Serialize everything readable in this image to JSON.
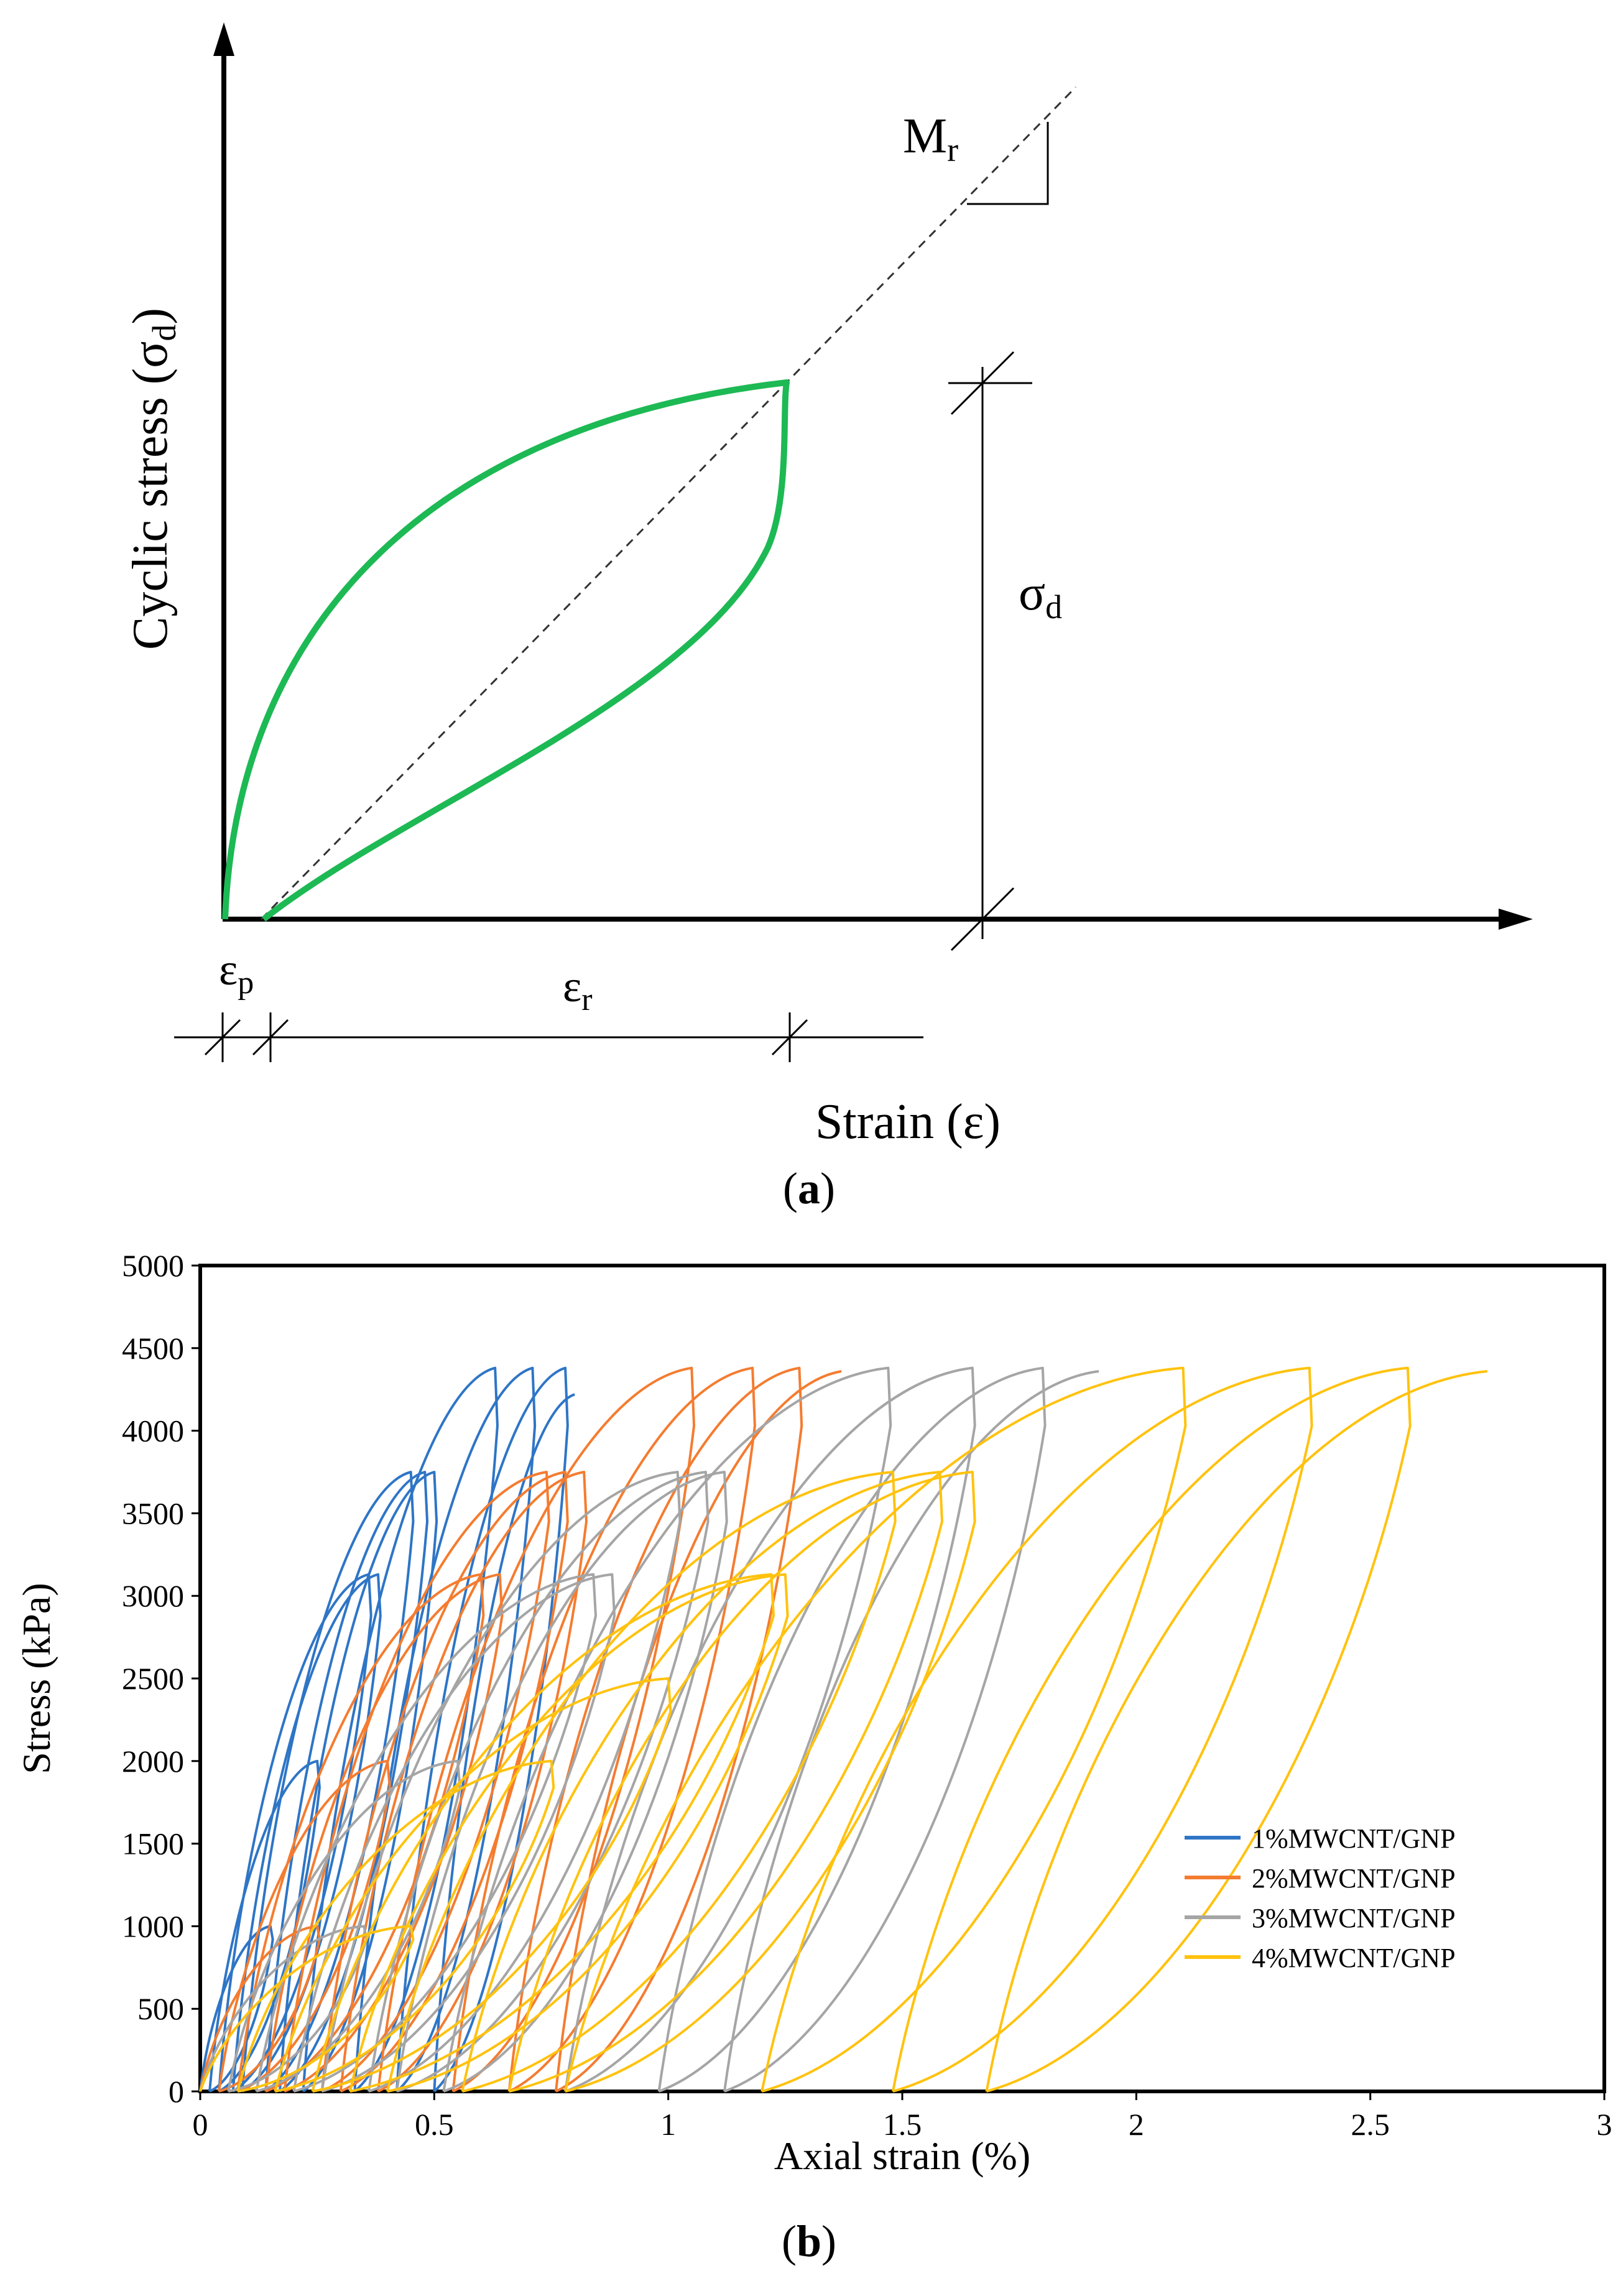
{
  "panel_a": {
    "y_axis_label_main": "Cyclic stress (",
    "y_axis_label_sigma": "σ",
    "y_axis_label_sub": "d",
    "y_axis_label_close": ")",
    "x_axis_label": "Strain (ε)",
    "mr_main": "M",
    "mr_sub": "r",
    "sigma_main": "σ",
    "sigma_sub": "d",
    "ep_main": "ε",
    "ep_sub": "p",
    "er_main": "ε",
    "er_sub": "r",
    "caption_open": "(",
    "caption_letter": "a",
    "caption_close": ")",
    "colors": {
      "loop": "#1db954",
      "axis": "#000000"
    }
  },
  "panel_b": {
    "caption_open": "(",
    "caption_letter": "b",
    "caption_close": ")"
  },
  "chart_data": {
    "type": "line",
    "title": "",
    "xlabel": "Axial strain (%)",
    "ylabel": "Stress (kPa)",
    "xlim": [
      0,
      3
    ],
    "ylim": [
      0,
      5000
    ],
    "x_ticks": [
      "0",
      "0.5",
      "1",
      "1.5",
      "2",
      "2.5",
      "3"
    ],
    "y_ticks": [
      "0",
      "500",
      "1000",
      "1500",
      "2000",
      "2500",
      "3000",
      "3500",
      "4000",
      "4500",
      "5000"
    ],
    "grid": false,
    "legend_position": "right",
    "series": [
      {
        "name": "1%MWCNT/GNP",
        "color": "#2e75c6",
        "loops": [
          {
            "start": 0.0,
            "peak_x": 0.15,
            "peak_y": 1000,
            "end": 0.02
          },
          {
            "start": 0.02,
            "peak_x": 0.25,
            "peak_y": 2000,
            "end": 0.04
          },
          {
            "start": 0.04,
            "peak_x": 0.36,
            "peak_y": 3130,
            "end": 0.07
          },
          {
            "start": 0.07,
            "peak_x": 0.38,
            "peak_y": 3130,
            "end": 0.09
          },
          {
            "start": 0.09,
            "peak_x": 0.45,
            "peak_y": 3750,
            "end": 0.14
          },
          {
            "start": 0.14,
            "peak_x": 0.48,
            "peak_y": 3750,
            "end": 0.17
          },
          {
            "start": 0.17,
            "peak_x": 0.5,
            "peak_y": 3750,
            "end": 0.22
          },
          {
            "start": 0.22,
            "peak_x": 0.63,
            "peak_y": 4380,
            "end": 0.33
          },
          {
            "start": 0.33,
            "peak_x": 0.71,
            "peak_y": 4380,
            "end": 0.42
          },
          {
            "start": 0.42,
            "peak_x": 0.78,
            "peak_y": 4380,
            "end": 0.5
          },
          {
            "start": 0.5,
            "peak_x": 0.8,
            "peak_y": 4220,
            "end": null
          }
        ]
      },
      {
        "name": "2%MWCNT/GNP",
        "color": "#f47c30",
        "loops": [
          {
            "start": 0.0,
            "peak_x": 0.25,
            "peak_y": 1000,
            "end": 0.04
          },
          {
            "start": 0.04,
            "peak_x": 0.4,
            "peak_y": 2000,
            "end": 0.08
          },
          {
            "start": 0.08,
            "peak_x": 0.6,
            "peak_y": 3130,
            "end": 0.14
          },
          {
            "start": 0.14,
            "peak_x": 0.64,
            "peak_y": 3130,
            "end": 0.18
          },
          {
            "start": 0.18,
            "peak_x": 0.74,
            "peak_y": 3750,
            "end": 0.26
          },
          {
            "start": 0.26,
            "peak_x": 0.78,
            "peak_y": 3750,
            "end": 0.3
          },
          {
            "start": 0.3,
            "peak_x": 0.82,
            "peak_y": 3750,
            "end": 0.38
          },
          {
            "start": 0.38,
            "peak_x": 1.05,
            "peak_y": 4380,
            "end": 0.54
          },
          {
            "start": 0.54,
            "peak_x": 1.18,
            "peak_y": 4380,
            "end": 0.66
          },
          {
            "start": 0.66,
            "peak_x": 1.28,
            "peak_y": 4380,
            "end": 0.76
          },
          {
            "start": 0.76,
            "peak_x": 1.37,
            "peak_y": 4360,
            "end": null
          }
        ]
      },
      {
        "name": "3%MWCNT/GNP",
        "color": "#a5a5a5",
        "loops": [
          {
            "start": 0.0,
            "peak_x": 0.35,
            "peak_y": 1000,
            "end": 0.06
          },
          {
            "start": 0.06,
            "peak_x": 0.55,
            "peak_y": 2000,
            "end": 0.12
          },
          {
            "start": 0.12,
            "peak_x": 0.84,
            "peak_y": 3130,
            "end": 0.2
          },
          {
            "start": 0.2,
            "peak_x": 0.88,
            "peak_y": 3130,
            "end": 0.26
          },
          {
            "start": 0.26,
            "peak_x": 1.02,
            "peak_y": 3750,
            "end": 0.36
          },
          {
            "start": 0.36,
            "peak_x": 1.08,
            "peak_y": 3750,
            "end": 0.42
          },
          {
            "start": 0.42,
            "peak_x": 1.12,
            "peak_y": 3750,
            "end": 0.52
          },
          {
            "start": 0.52,
            "peak_x": 1.47,
            "peak_y": 4380,
            "end": 0.78
          },
          {
            "start": 0.78,
            "peak_x": 1.65,
            "peak_y": 4380,
            "end": 0.98
          },
          {
            "start": 0.98,
            "peak_x": 1.8,
            "peak_y": 4380,
            "end": 1.12
          },
          {
            "start": 1.12,
            "peak_x": 1.92,
            "peak_y": 4360,
            "end": null
          }
        ]
      },
      {
        "name": "4%MWCNT/GNP",
        "color": "#ffc20e",
        "loops": [
          {
            "start": 0.0,
            "peak_x": 0.45,
            "peak_y": 1000,
            "end": 0.08
          },
          {
            "start": 0.08,
            "peak_x": 0.75,
            "peak_y": 2000,
            "end": 0.16
          },
          {
            "start": 0.16,
            "peak_x": 1.0,
            "peak_y": 2500,
            "end": 0.24
          },
          {
            "start": 0.24,
            "peak_x": 1.22,
            "peak_y": 3130,
            "end": 0.32
          },
          {
            "start": 0.32,
            "peak_x": 1.25,
            "peak_y": 3130,
            "end": 0.4
          },
          {
            "start": 0.4,
            "peak_x": 1.48,
            "peak_y": 3750,
            "end": 0.56
          },
          {
            "start": 0.56,
            "peak_x": 1.58,
            "peak_y": 3750,
            "end": 0.66
          },
          {
            "start": 0.66,
            "peak_x": 1.65,
            "peak_y": 3750,
            "end": 0.78
          },
          {
            "start": 0.78,
            "peak_x": 2.1,
            "peak_y": 4380,
            "end": 1.2
          },
          {
            "start": 1.2,
            "peak_x": 2.37,
            "peak_y": 4380,
            "end": 1.48
          },
          {
            "start": 1.48,
            "peak_x": 2.58,
            "peak_y": 4380,
            "end": 1.68
          },
          {
            "start": 1.68,
            "peak_x": 2.75,
            "peak_y": 4360,
            "end": null
          }
        ]
      }
    ]
  }
}
